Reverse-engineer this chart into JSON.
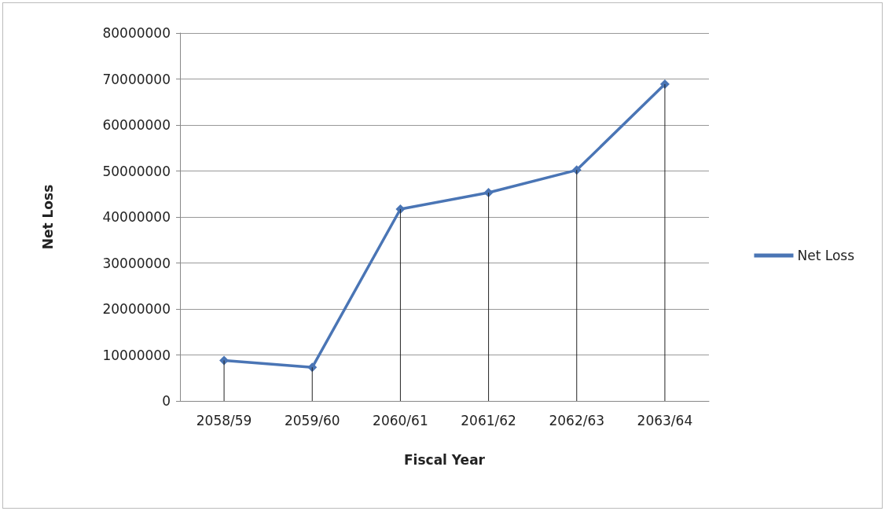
{
  "chart_data": {
    "type": "line",
    "xlabel": "Fiscal Year",
    "ylabel": "Net Loss",
    "categories": [
      "2058/59",
      "2059/60",
      "2060/61",
      "2061/62",
      "2062/63",
      "2063/64"
    ],
    "series": [
      {
        "name": "Net Loss",
        "color": "#4a75b5",
        "values": [
          8800000,
          7300000,
          41700000,
          45300000,
          50200000,
          68900000
        ]
      },
      {
        "type": "bar",
        "color": "#222222",
        "values": [
          8800000,
          7300000,
          41700000,
          45300000,
          50200000,
          68900000
        ]
      }
    ],
    "ylim": [
      0,
      80000000
    ],
    "yticks": [
      0,
      10000000,
      20000000,
      30000000,
      40000000,
      50000000,
      60000000,
      70000000,
      80000000
    ],
    "grid": "y",
    "legend": "right",
    "marker": "diamond",
    "line_style": "solid"
  }
}
